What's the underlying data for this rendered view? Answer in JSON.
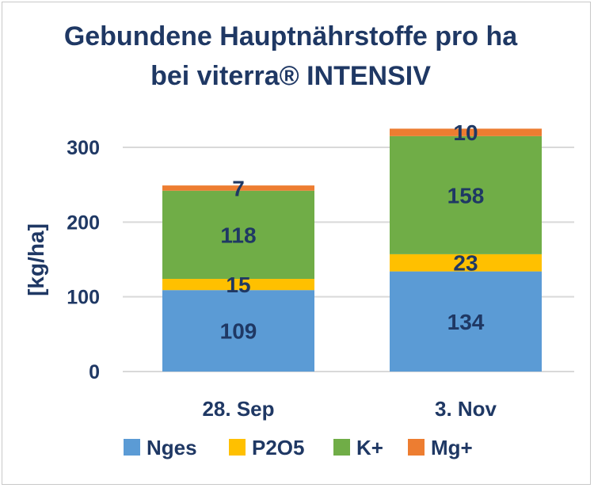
{
  "chart_data": {
    "type": "bar",
    "stacked": true,
    "title_lines": [
      "Gebundene Hauptnährstoffe pro ha",
      "bei viterra® INTENSIV"
    ],
    "xlabel": "",
    "ylabel": "[kg/ha]",
    "ylim": [
      0,
      300
    ],
    "yticks": [
      0,
      100,
      200,
      300
    ],
    "grid": true,
    "legend_position": "bottom",
    "categories": [
      "28. Sep",
      "3. Nov"
    ],
    "series": [
      {
        "name": "Nges",
        "color": "#5b9bd5",
        "values": [
          109,
          134
        ]
      },
      {
        "name": "P2O5",
        "color": "#ffc000",
        "values": [
          15,
          23
        ]
      },
      {
        "name": "K+",
        "color": "#70ad47",
        "values": [
          118,
          158
        ]
      },
      {
        "name": "Mg+",
        "color": "#ed7d31",
        "values": [
          7,
          10
        ]
      }
    ]
  }
}
